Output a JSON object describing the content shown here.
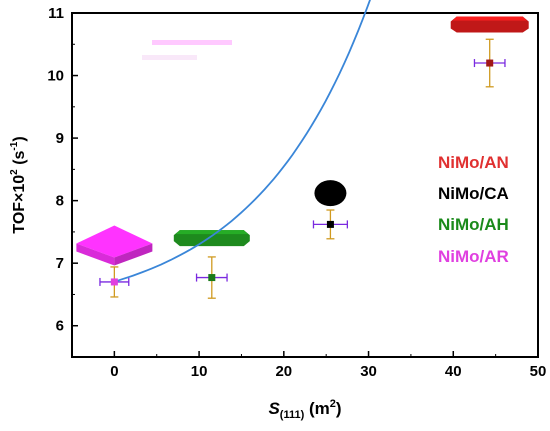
{
  "chart_data": {
    "type": "scatter",
    "xlabel_main": "S",
    "xlabel_sub": "(111)",
    "xlabel_rest": " (m",
    "xlabel_sup": "2",
    "xlabel_end": ")",
    "ylabel_main": "TOF×10",
    "ylabel_sup1": "2",
    "ylabel_mid": " (s",
    "ylabel_sup2": "-1",
    "ylabel_end": ")",
    "xlim": [
      -5,
      50
    ],
    "ylim": [
      5.5,
      11
    ],
    "xticks": [
      0,
      10,
      20,
      30,
      40,
      50
    ],
    "yticks": [
      6,
      7,
      8,
      9,
      10,
      11
    ],
    "grid": false,
    "points": [
      {
        "name": "NiMo/AR",
        "x": 0,
        "y": 6.7,
        "xerr": 1.7,
        "yerr": 0.24,
        "color": "#e040e0"
      },
      {
        "name": "NiMo/AH",
        "x": 11.5,
        "y": 6.77,
        "xerr": 1.8,
        "yerr": 0.33,
        "color": "#1a7a1a"
      },
      {
        "name": "NiMo/CA",
        "x": 25.5,
        "y": 7.62,
        "xerr": 2.0,
        "yerr": 0.23,
        "color": "#000000"
      },
      {
        "name": "NiMo/AN",
        "x": 44.3,
        "y": 10.2,
        "xerr": 1.8,
        "yerr": 0.38,
        "color": "#a01818"
      }
    ],
    "fit": {
      "a": 6.155,
      "b": 0.55,
      "c": 0.0735,
      "x_range": [
        0,
        44.3
      ],
      "color": "#3a86d8"
    },
    "errorbar_colors": {
      "x": "#7a2ae0",
      "y": "#d09a20"
    },
    "legend": {
      "placement": "right",
      "entries": [
        {
          "label": "NiMo/AN",
          "color": "#e03030"
        },
        {
          "label": "NiMo/CA",
          "color": "#000000"
        },
        {
          "label": "NiMo/AH",
          "color": "#1a8a1a"
        },
        {
          "label": "NiMo/AR",
          "color": "#e040e0"
        }
      ]
    },
    "shapes": [
      {
        "name": "AR",
        "kind": "square-plate",
        "x": 0,
        "y": 7.25,
        "color": "#ff33ff"
      },
      {
        "name": "AH",
        "kind": "octagon-plate",
        "x": 11.5,
        "y": 7.4,
        "color": "#1e8a1e"
      },
      {
        "name": "CA",
        "kind": "sphere",
        "x": 25.5,
        "y": 8.12,
        "color": "#000000"
      },
      {
        "name": "AN",
        "kind": "hexagon-plate",
        "x": 44.3,
        "y": 10.8,
        "color": "#c01818"
      }
    ]
  }
}
